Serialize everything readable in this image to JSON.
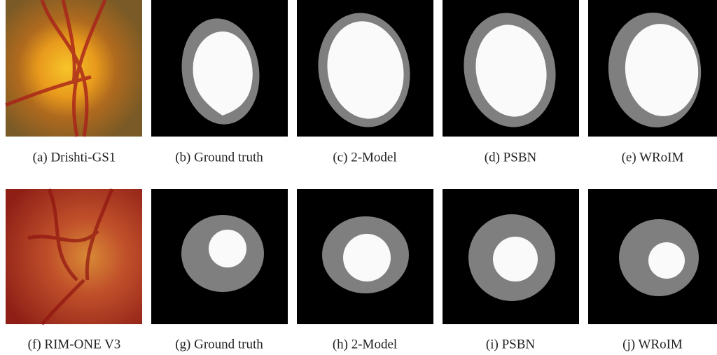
{
  "figure": {
    "rows": [
      {
        "panels": [
          {
            "caption": "(a) Drishti-GS1"
          },
          {
            "caption": "(b) Ground truth"
          },
          {
            "caption": "(c) 2-Model"
          },
          {
            "caption": "(d) PSBN"
          },
          {
            "caption": "(e) WRoIM"
          }
        ]
      },
      {
        "panels": [
          {
            "caption": "(f) RIM-ONE V3"
          },
          {
            "caption": "(g) Ground truth"
          },
          {
            "caption": "(h) 2-Model"
          },
          {
            "caption": "(i) PSBN"
          },
          {
            "caption": "(j) WRoIM"
          }
        ]
      }
    ]
  }
}
